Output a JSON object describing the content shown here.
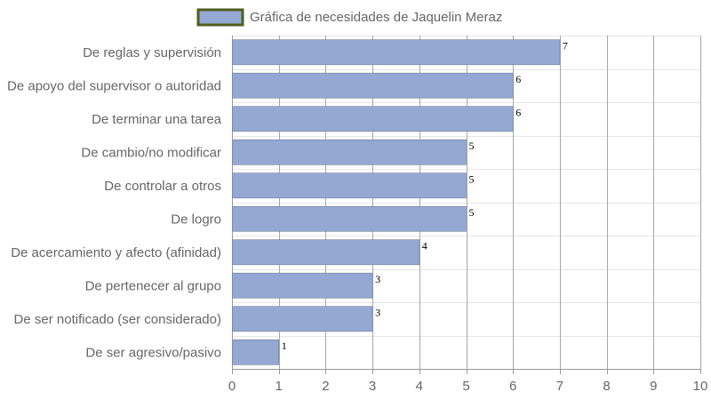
{
  "chart_data": {
    "type": "bar",
    "orientation": "horizontal",
    "categories": [
      "De reglas y supervisión",
      "De apoyo del supervisor o autoridad",
      "De terminar una tarea",
      "De cambio/no modificar",
      "De controlar a otros",
      "De logro",
      "De acercamiento y afecto (afinidad)",
      "De pertenecer al grupo",
      "De ser notificado (ser considerado)",
      "De ser agresivo/pasivo"
    ],
    "series": [
      {
        "name": "Gráfica de necesidades de Jaquelin Meraz",
        "values": [
          7,
          6,
          6,
          5,
          5,
          5,
          4,
          3,
          3,
          1
        ]
      }
    ],
    "xlim": [
      0,
      10
    ],
    "ticks": [
      0,
      1,
      2,
      3,
      4,
      5,
      6,
      7,
      8,
      9,
      10
    ],
    "grid": true,
    "legend_position": "top",
    "data_labels": true,
    "colors": {
      "bar_fill": "#95a8d4",
      "legend_border": "#4e5f1f",
      "grid_vertical": "#a6a6a6",
      "grid_horizontal": "#e6e6e6",
      "axis": "#999999",
      "text": "#666666"
    }
  }
}
